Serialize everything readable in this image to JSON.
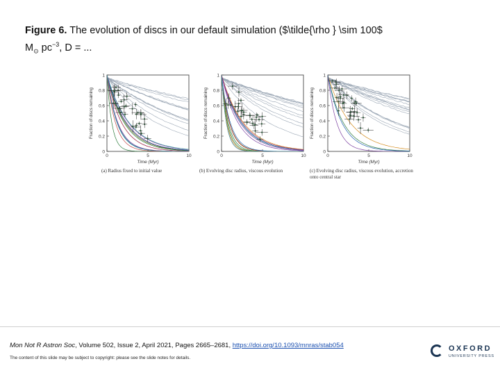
{
  "title": {
    "label": "Figure 6.",
    "text": "The evolution of discs in our default simulation ($\\tilde{\\rho } \\sim 100$ M",
    "sun": "⊙",
    "text_tail": "pc",
    "sup": "−3",
    "text_end": ", D = ..."
  },
  "chart_data": [
    {
      "type": "line",
      "xlabel": "Time (Myr)",
      "ylabel": "Fraction of discs remaining",
      "xlim": [
        0,
        10
      ],
      "ylim": [
        0,
        1
      ],
      "xticks": [
        "0",
        "5",
        "10"
      ],
      "yticks": [
        "0",
        "0.2",
        "0.4",
        "0.6",
        "0.8",
        "1"
      ],
      "caption": "(a) Radius fixed to initial value"
    },
    {
      "type": "line",
      "xlabel": "Time (Myr)",
      "ylabel": "Fraction of discs remaining",
      "xlim": [
        0,
        10
      ],
      "ylim": [
        0,
        1
      ],
      "xticks": [
        "0",
        "5",
        "10"
      ],
      "yticks": [
        "0",
        "0.2",
        "0.4",
        "0.6",
        "0.8",
        "1"
      ],
      "caption": "(b) Evolving disc radius, viscous evolution"
    },
    {
      "type": "line",
      "xlabel": "Time (Myr)",
      "ylabel": "Fraction of discs remaining",
      "xlim": [
        0,
        10
      ],
      "ylim": [
        0,
        1
      ],
      "xticks": [
        "0",
        "5",
        "10"
      ],
      "yticks": [
        "0",
        "0.2",
        "0.4",
        "0.6",
        "0.8",
        "1"
      ],
      "caption": "(c) Evolving disc radius, viscous evolution, accretion onto central star"
    }
  ],
  "citation": {
    "journal": "Mon Not R Astron Soc",
    "details": ", Volume 502, Issue 2, April 2021, Pages 2665–2681,",
    "doi": "https://doi.org/10.1093/mnras/stab054"
  },
  "copyright": "The content of this slide may be subject to copyright: please see the slide notes for details.",
  "logo": {
    "name": "OXFORD",
    "sub": "UNIVERSITY PRESS",
    "color": "#1b3553"
  }
}
